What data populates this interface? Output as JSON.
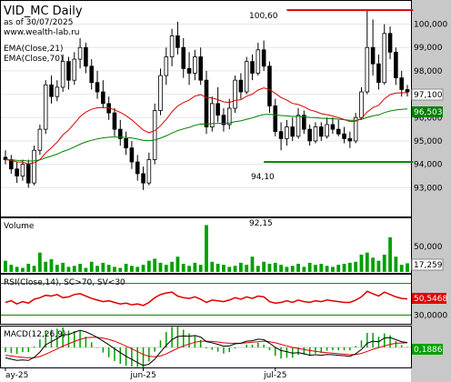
{
  "header": {
    "title": "VID_MC Daily",
    "as_of": "as of 30/07/2025",
    "site": "www.wealth-lab.ru"
  },
  "colors": {
    "up": "#ffffff",
    "down": "#000000",
    "ema21": "#e00000",
    "ema70": "#008000",
    "resistance": "#e00000",
    "support": "#008000",
    "volume": "#00a000",
    "rsi": "#e00000",
    "macd": "#000000",
    "signal": "#e00000",
    "hist": "#00a000"
  },
  "chart_data": [
    {
      "type": "candlestick",
      "title": "VID_MC Daily",
      "legend": [
        "EMA(Close,21)",
        "EMA(Close,70)"
      ],
      "ylim": [
        92.0,
        100.8
      ],
      "yticks": [
        "93,000",
        "94,000",
        "95,000",
        "96,000",
        "97,000",
        "98,000",
        "99,000",
        "100,000"
      ],
      "xticks": [
        {
          "label": "ay-25",
          "index": 0
        },
        {
          "label": "jun-25",
          "index": 24
        },
        {
          "label": "jul-25",
          "index": 47
        }
      ],
      "annotations": {
        "high_label": "100,60",
        "low_label": "94,10",
        "last_close": "97,100",
        "ema70_last": "96,503"
      },
      "levels": {
        "resistance": 100.6,
        "support": 94.1,
        "resistance_start": 49,
        "support_start": 45,
        "end": 71
      },
      "candles": [
        [
          94.3,
          94.6,
          94.0,
          94.2
        ],
        [
          94.2,
          94.4,
          93.6,
          93.8
        ],
        [
          93.8,
          94.1,
          93.2,
          93.5
        ],
        [
          93.5,
          94.2,
          93.3,
          94.0
        ],
        [
          94.0,
          94.2,
          93.0,
          93.2
        ],
        [
          93.2,
          94.8,
          93.1,
          94.6
        ],
        [
          94.6,
          95.7,
          94.4,
          95.5
        ],
        [
          95.5,
          97.6,
          95.3,
          97.4
        ],
        [
          97.4,
          97.8,
          96.6,
          96.9
        ],
        [
          96.9,
          97.6,
          96.7,
          97.3
        ],
        [
          97.3,
          98.7,
          97.1,
          98.4
        ],
        [
          98.4,
          98.6,
          97.2,
          97.6
        ],
        [
          97.6,
          98.8,
          97.4,
          98.5
        ],
        [
          98.5,
          99.4,
          98.1,
          99.0
        ],
        [
          99.0,
          99.2,
          97.9,
          98.2
        ],
        [
          98.2,
          98.5,
          97.2,
          97.5
        ],
        [
          97.5,
          98.0,
          96.8,
          97.1
        ],
        [
          97.1,
          97.6,
          96.4,
          96.6
        ],
        [
          96.6,
          96.9,
          95.9,
          96.2
        ],
        [
          96.2,
          96.4,
          95.2,
          95.5
        ],
        [
          95.5,
          95.9,
          94.8,
          95.1
        ],
        [
          95.1,
          95.4,
          94.4,
          94.7
        ],
        [
          94.7,
          95.0,
          93.8,
          94.1
        ],
        [
          94.1,
          94.4,
          93.3,
          93.6
        ],
        [
          93.6,
          93.9,
          92.9,
          93.2
        ],
        [
          93.2,
          94.5,
          93.1,
          94.2
        ],
        [
          94.2,
          96.6,
          94.0,
          96.3
        ],
        [
          96.3,
          98.1,
          96.1,
          97.8
        ],
        [
          97.8,
          99.0,
          97.4,
          98.6
        ],
        [
          98.6,
          99.8,
          98.2,
          99.5
        ],
        [
          99.5,
          100.1,
          98.7,
          99.0
        ],
        [
          99.0,
          99.4,
          97.7,
          98.1
        ],
        [
          98.1,
          98.8,
          97.4,
          97.9
        ],
        [
          97.9,
          98.9,
          97.6,
          98.6
        ],
        [
          98.6,
          99.0,
          97.4,
          97.6
        ],
        [
          97.6,
          98.0,
          95.3,
          95.6
        ],
        [
          95.6,
          96.9,
          95.4,
          96.6
        ],
        [
          96.6,
          97.3,
          95.8,
          96.1
        ],
        [
          96.1,
          96.4,
          95.4,
          95.7
        ],
        [
          95.7,
          96.8,
          95.5,
          96.4
        ],
        [
          96.4,
          97.8,
          96.2,
          97.6
        ],
        [
          97.6,
          97.9,
          96.8,
          97.1
        ],
        [
          97.1,
          98.6,
          97.0,
          98.4
        ],
        [
          98.4,
          98.7,
          97.6,
          97.9
        ],
        [
          97.9,
          99.2,
          97.8,
          98.9
        ],
        [
          98.9,
          99.3,
          98.0,
          98.2
        ],
        [
          98.2,
          98.4,
          96.2,
          96.5
        ],
        [
          96.5,
          96.8,
          95.2,
          95.4
        ],
        [
          95.4,
          95.8,
          94.6,
          95.1
        ],
        [
          95.1,
          95.9,
          94.8,
          95.6
        ],
        [
          95.6,
          96.0,
          95.0,
          95.2
        ],
        [
          95.2,
          96.4,
          95.1,
          96.1
        ],
        [
          96.1,
          96.3,
          95.3,
          95.5
        ],
        [
          95.5,
          95.7,
          94.8,
          95.0
        ],
        [
          95.0,
          95.8,
          94.9,
          95.6
        ],
        [
          95.6,
          95.8,
          95.0,
          95.2
        ],
        [
          95.2,
          96.0,
          95.1,
          95.7
        ],
        [
          95.7,
          96.0,
          95.3,
          95.5
        ],
        [
          95.5,
          95.9,
          95.2,
          95.3
        ],
        [
          95.3,
          95.6,
          94.9,
          95.1
        ],
        [
          95.1,
          95.4,
          94.7,
          95.0
        ],
        [
          95.0,
          96.2,
          94.9,
          96.0
        ],
        [
          96.0,
          97.3,
          95.9,
          97.1
        ],
        [
          97.1,
          100.6,
          97.0,
          99.0
        ],
        [
          99.0,
          100.2,
          97.8,
          98.3
        ],
        [
          98.3,
          98.7,
          97.2,
          97.5
        ],
        [
          97.5,
          100.0,
          97.4,
          99.6
        ],
        [
          99.6,
          99.9,
          98.5,
          98.8
        ],
        [
          98.8,
          99.0,
          97.4,
          97.7
        ],
        [
          97.7,
          98.0,
          96.9,
          97.2
        ],
        [
          97.2,
          97.4,
          96.9,
          97.1
        ]
      ]
    },
    {
      "type": "bar",
      "title": "Volume",
      "ylim": [
        0,
        100
      ],
      "yticks": [
        "50,000"
      ],
      "annotations": {
        "max_label": "92,15",
        "last_label": "17,259"
      },
      "values": [
        22,
        14,
        10,
        8,
        16,
        12,
        38,
        20,
        25,
        14,
        18,
        10,
        12,
        16,
        8,
        20,
        12,
        18,
        14,
        10,
        8,
        16,
        12,
        10,
        14,
        22,
        26,
        18,
        14,
        20,
        30,
        16,
        12,
        18,
        14,
        92,
        20,
        16,
        14,
        10,
        12,
        18,
        14,
        30,
        12,
        20,
        16,
        18,
        14,
        10,
        12,
        16,
        10,
        18,
        14,
        16,
        12,
        10,
        14,
        16,
        18,
        20,
        34,
        38,
        28,
        22,
        34,
        68,
        30,
        14,
        17
      ]
    },
    {
      "type": "line",
      "title": "RSI(Close,14), SC>70, SV<30",
      "ylim": [
        20,
        80
      ],
      "yticks": [
        "30,0000"
      ],
      "levels": [
        30,
        70
      ],
      "annotations": {
        "last_label": "50,5468"
      },
      "values": [
        46,
        48,
        44,
        47,
        45,
        50,
        52,
        55,
        54,
        56,
        52,
        53,
        56,
        57,
        54,
        51,
        49,
        47,
        48,
        46,
        44,
        45,
        43,
        44,
        42,
        46,
        52,
        56,
        58,
        59,
        54,
        52,
        51,
        53,
        50,
        46,
        49,
        48,
        47,
        49,
        52,
        50,
        53,
        51,
        54,
        53,
        47,
        45,
        46,
        48,
        46,
        49,
        47,
        46,
        48,
        47,
        49,
        48,
        47,
        46,
        46,
        49,
        53,
        60,
        57,
        54,
        59,
        56,
        53,
        51,
        50.5
      ]
    },
    {
      "type": "line",
      "title": "MACD(12,26,9)",
      "annotations": {
        "last_label": "0,1886"
      },
      "macd": [
        -0.4,
        -0.45,
        -0.5,
        -0.48,
        -0.5,
        -0.38,
        -0.18,
        0.1,
        0.22,
        0.34,
        0.48,
        0.5,
        0.58,
        0.66,
        0.6,
        0.5,
        0.38,
        0.25,
        0.1,
        -0.05,
        -0.2,
        -0.34,
        -0.46,
        -0.58,
        -0.7,
        -0.64,
        -0.45,
        -0.18,
        0.08,
        0.3,
        0.42,
        0.44,
        0.43,
        0.46,
        0.4,
        0.22,
        0.18,
        0.12,
        0.05,
        0.06,
        0.14,
        0.16,
        0.24,
        0.26,
        0.32,
        0.3,
        0.16,
        0.0,
        -0.12,
        -0.16,
        -0.22,
        -0.2,
        -0.24,
        -0.3,
        -0.28,
        -0.3,
        -0.27,
        -0.28,
        -0.3,
        -0.32,
        -0.34,
        -0.24,
        -0.08,
        0.16,
        0.24,
        0.22,
        0.36,
        0.38,
        0.3,
        0.22,
        0.19
      ],
      "signal": [
        -0.3,
        -0.33,
        -0.36,
        -0.38,
        -0.4,
        -0.4,
        -0.35,
        -0.26,
        -0.16,
        -0.06,
        0.05,
        0.14,
        0.23,
        0.31,
        0.37,
        0.39,
        0.39,
        0.36,
        0.31,
        0.24,
        0.15,
        0.05,
        -0.05,
        -0.16,
        -0.27,
        -0.34,
        -0.36,
        -0.33,
        -0.25,
        -0.14,
        -0.03,
        0.06,
        0.13,
        0.2,
        0.24,
        0.24,
        0.23,
        0.21,
        0.18,
        0.16,
        0.16,
        0.16,
        0.18,
        0.2,
        0.22,
        0.24,
        0.22,
        0.18,
        0.12,
        0.06,
        0.0,
        -0.04,
        -0.08,
        -0.12,
        -0.15,
        -0.18,
        -0.2,
        -0.22,
        -0.24,
        -0.26,
        -0.28,
        -0.27,
        -0.23,
        -0.15,
        -0.07,
        -0.01,
        0.06,
        0.12,
        0.16,
        0.17,
        0.18
      ]
    }
  ]
}
